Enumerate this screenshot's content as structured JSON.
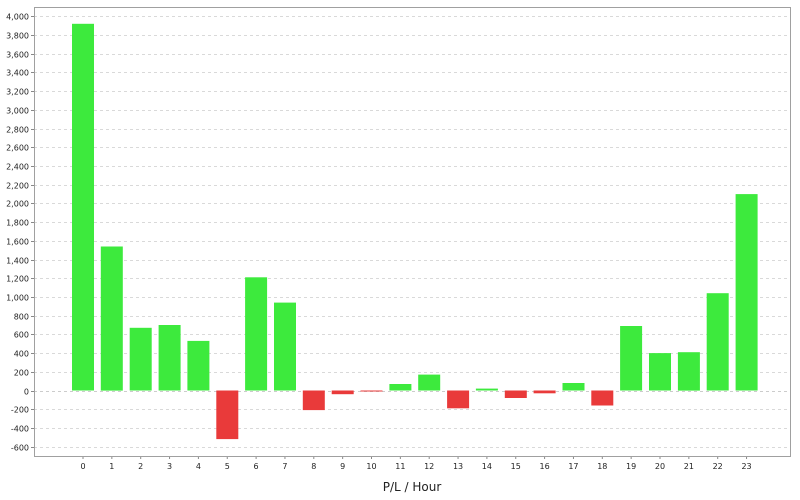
{
  "chart_data": {
    "type": "bar",
    "title": "",
    "xlabel": "P/L / Hour",
    "ylabel": "",
    "ylim": [
      -700,
      4100
    ],
    "y_ticks": [
      -600,
      -400,
      -200,
      0,
      200,
      400,
      600,
      800,
      1000,
      1200,
      1400,
      1600,
      1800,
      2000,
      2200,
      2400,
      2600,
      2800,
      3000,
      3200,
      3400,
      3600,
      3800,
      4000
    ],
    "y_tick_labels": [
      "-600",
      "-400",
      "-200",
      "0",
      "200",
      "400",
      "600",
      "800",
      "1,000",
      "1,200",
      "1,400",
      "1,600",
      "1,800",
      "2,000",
      "2,200",
      "2,400",
      "2,600",
      "2,800",
      "3,000",
      "3,200",
      "3,400",
      "3,600",
      "3,800",
      "4,000"
    ],
    "categories": [
      "0",
      "1",
      "2",
      "3",
      "4",
      "5",
      "6",
      "7",
      "8",
      "9",
      "10",
      "11",
      "12",
      "13",
      "14",
      "15",
      "16",
      "17",
      "18",
      "19",
      "20",
      "21",
      "22",
      "23"
    ],
    "values": [
      3920,
      1540,
      670,
      700,
      530,
      -520,
      1210,
      940,
      -210,
      -40,
      -5,
      70,
      170,
      -190,
      20,
      -80,
      -30,
      80,
      -160,
      690,
      400,
      410,
      1040,
      2100
    ],
    "grid": true,
    "legend": "none",
    "colors": {
      "positive": "#3dea3d",
      "negative": "#e93a3a",
      "grid": "#d9d9d9",
      "plot_border": "#a0a0a0",
      "zero_line": "#cccccc"
    }
  }
}
